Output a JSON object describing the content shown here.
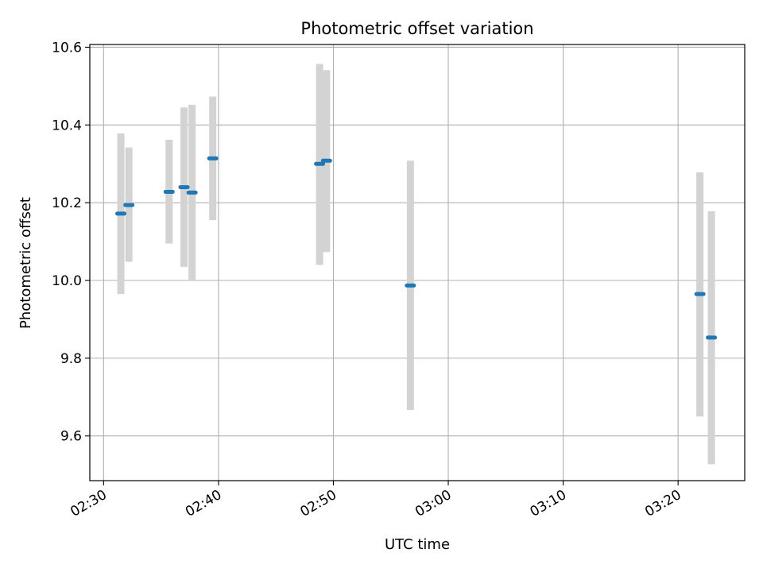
{
  "chart_data": {
    "type": "scatter",
    "title": "Photometric offset variation",
    "xlabel": "UTC time",
    "ylabel": "Photometric offset",
    "x_ticks": [
      "02:30",
      "02:40",
      "02:50",
      "03:00",
      "03:10",
      "03:20"
    ],
    "y_ticks": [
      "9.6",
      "9.8",
      "10.0",
      "10.2",
      "10.4",
      "10.6"
    ],
    "xlim": [
      "02:28.8",
      "03:25.8"
    ],
    "ylim": [
      9.485,
      10.607
    ],
    "grid": true,
    "point_color": "#1f77b4",
    "errorbar_color": "#d3d3d3",
    "points": [
      {
        "time": "02:31.5",
        "y": 10.172,
        "y_low": 9.965,
        "y_high": 10.378
      },
      {
        "time": "02:32.2",
        "y": 10.194,
        "y_low": 10.048,
        "y_high": 10.342
      },
      {
        "time": "02:35.7",
        "y": 10.228,
        "y_low": 10.095,
        "y_high": 10.362
      },
      {
        "time": "02:37.0",
        "y": 10.24,
        "y_low": 10.035,
        "y_high": 10.445
      },
      {
        "time": "02:37.7",
        "y": 10.226,
        "y_low": 10.0,
        "y_high": 10.452
      },
      {
        "time": "02:39.5",
        "y": 10.314,
        "y_low": 10.155,
        "y_high": 10.473
      },
      {
        "time": "02:48.8",
        "y": 10.3,
        "y_low": 10.04,
        "y_high": 10.557
      },
      {
        "time": "02:49.4",
        "y": 10.308,
        "y_low": 10.073,
        "y_high": 10.541
      },
      {
        "time": "02:56.7",
        "y": 9.987,
        "y_low": 9.667,
        "y_high": 10.308
      },
      {
        "time": "03:21.9",
        "y": 9.965,
        "y_low": 9.65,
        "y_high": 10.278
      },
      {
        "time": "03:22.9",
        "y": 9.853,
        "y_low": 9.527,
        "y_high": 10.178
      }
    ]
  }
}
